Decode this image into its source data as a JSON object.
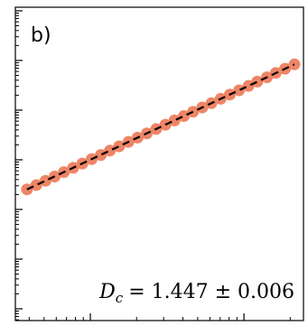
{
  "chart_data": {
    "type": "scatter",
    "label": "b)",
    "annotation": {
      "symbol": "D",
      "subscript": "c",
      "text": "= 1.447 ± 0.006"
    },
    "log_x": true,
    "log_y": true,
    "xlim": [
      3.25,
      244
    ],
    "ylim": [
      0.058,
      118000
    ],
    "xticks": [
      10,
      100
    ],
    "yticks": [
      0.1,
      1,
      10,
      100,
      1000,
      10000,
      100000
    ],
    "x": [
      3.87,
      4.45,
      5.11,
      5.86,
      6.73,
      7.73,
      8.87,
      10.2,
      11.7,
      13.4,
      15.4,
      17.7,
      20.3,
      23.3,
      26.8,
      30.8,
      35.3,
      40.6,
      46.6,
      53.5,
      61.4,
      70.5,
      80.9,
      92.9,
      107,
      122,
      141,
      161,
      185,
      213
    ],
    "series": [
      {
        "color": "#ee8566",
        "values": [
          25.4,
          31.0,
          37.8,
          46.1,
          56.4,
          68.9,
          84.1,
          103,
          125,
          153,
          187,
          229,
          279,
          340,
          416,
          508,
          621,
          759,
          925,
          1130,
          1380,
          1690,
          2060,
          2510,
          3070,
          3750,
          4580,
          5600,
          6820,
          8340
        ]
      }
    ],
    "fit": {
      "color": "#000000",
      "x": [
        3.87,
        213
      ],
      "values": [
        25.4,
        8340
      ]
    }
  }
}
